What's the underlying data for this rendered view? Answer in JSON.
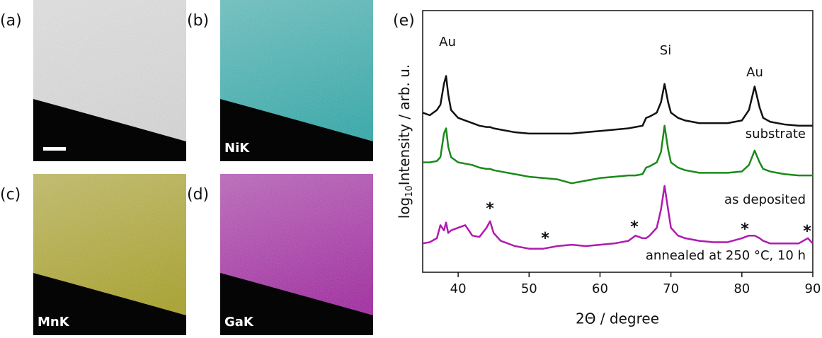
{
  "panels": [
    {
      "label": "(a)",
      "color": "#d8d8d8"
    },
    {
      "label": "(b)",
      "element": "NiK",
      "color": "#2aa8a8"
    },
    {
      "label": "(c)",
      "element": "MnK",
      "color": "#a8a020"
    },
    {
      "label": "(d)",
      "element": "GaK",
      "color": "#a020a0"
    }
  ],
  "chart_data": {
    "type": "line",
    "panel_label": "(e)",
    "xlabel": "2Θ / degree",
    "ylabel": [
      "log",
      "10",
      "Intensity / arb. u."
    ],
    "xlim": [
      35,
      90
    ],
    "ylim": [
      0,
      100
    ],
    "xticks": [
      40,
      50,
      60,
      70,
      80,
      90
    ],
    "x": [
      35,
      36,
      37,
      37.5,
      38,
      38.3,
      38.6,
      39,
      40,
      41,
      42,
      43,
      44,
      44.5,
      45,
      46,
      48,
      50,
      52,
      54,
      56,
      58,
      60,
      62,
      64,
      65,
      66,
      66.5,
      67,
      68,
      68.6,
      69.1,
      69.6,
      70,
      71,
      72,
      74,
      76,
      78,
      80,
      81,
      81.8,
      82.5,
      83,
      84,
      86,
      88,
      89.3,
      90
    ],
    "series": [
      {
        "name": "substrate",
        "color": "#111111",
        "values": [
          61,
          60,
          62,
          64,
          72,
          75,
          68,
          62,
          59,
          58,
          57,
          56,
          55.5,
          55.5,
          55,
          54.5,
          53.5,
          53,
          53,
          53,
          53,
          53.5,
          54,
          54.5,
          55,
          55.5,
          56,
          59,
          59.5,
          61,
          65,
          72,
          65,
          61,
          59,
          58,
          57,
          57,
          57,
          58,
          62,
          71,
          63,
          59,
          57.5,
          56.5,
          56,
          56,
          56
        ]
      },
      {
        "name": "as deposited",
        "color": "#1a8a1a",
        "values": [
          42,
          42,
          42.5,
          44,
          53,
          55,
          48,
          44,
          42,
          41.5,
          41,
          40,
          39.5,
          39.5,
          39,
          38.5,
          37.5,
          36.5,
          36,
          35.5,
          34,
          35,
          36,
          36.5,
          37,
          37,
          37.5,
          40,
          40.5,
          42,
          46,
          56,
          47,
          42,
          40,
          39,
          38,
          38,
          38,
          38.5,
          41,
          46.5,
          42,
          39.5,
          38.5,
          37.5,
          37,
          37,
          37
        ]
      },
      {
        "name": "annealed at 250 °C, 10 h",
        "color": "#b01ab0",
        "values": [
          11,
          11.5,
          13,
          18,
          16,
          19,
          15,
          16,
          17,
          18,
          14,
          13.5,
          17,
          19.5,
          15,
          12,
          10,
          9,
          9,
          10,
          10.5,
          10,
          10.5,
          11,
          12,
          14,
          13,
          13,
          14,
          17,
          24,
          33,
          24,
          17,
          14,
          13,
          12,
          11.5,
          11.5,
          13,
          14,
          14,
          13,
          12,
          11,
          11,
          11,
          13,
          11
        ]
      }
    ],
    "annotations": [
      "Au",
      "Si",
      "Au",
      "*",
      "*",
      "*",
      "*",
      "*"
    ]
  }
}
